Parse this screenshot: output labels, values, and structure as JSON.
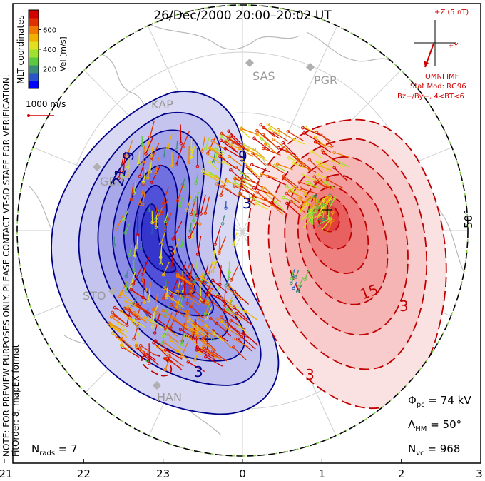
{
  "chart_data": {
    "type": "map",
    "title": "26/Dec/2000 20:00–20:02 UT",
    "coordinates_label": "MLT coordinates",
    "note": "NOTE: FOR PREVIEW PURPOSES ONLY. PLEASE CONTACT VT-SD STAFF FOR VERIFICATION.",
    "fit_order": "FitOrder: 8, mapEX format",
    "colorbar": {
      "label": "Vel [m/s]",
      "ticks": [
        200,
        400,
        600
      ],
      "range": [
        0,
        800
      ],
      "colors": [
        "#0000ff",
        "#2a55c8",
        "#3c8c78",
        "#5cc840",
        "#a0e030",
        "#e0e020",
        "#f0b000",
        "#f07800",
        "#e03000",
        "#d00000"
      ]
    },
    "vector_scale": {
      "label": "1000 m/s",
      "value": 1000
    },
    "imf": {
      "z_label": "+Z (5 nT)",
      "y_label": "+Y",
      "source": "OMNI IMF",
      "stat_model": "Stat Mod: RG96",
      "condition": "Bz−/By−, 4<BT<6"
    },
    "mlt_ticks": [
      "21",
      "22",
      "23",
      "0",
      "1",
      "2",
      "3"
    ],
    "latitude_label": "50°",
    "station_labels": [
      "KAP",
      "SAS",
      "PGR",
      "GBR",
      "STO",
      "HAN"
    ],
    "contour_labels": [
      "21",
      "9",
      "3",
      "9",
      "3",
      "3",
      "15",
      "3",
      "3"
    ],
    "stats": {
      "nrads_label": "N",
      "nrads_sub": "rads",
      "nrads": "7",
      "phi_label": "Φ",
      "phi_sub": "pc",
      "phi_value": "74 kV",
      "lambda_label": "Λ",
      "lambda_sub": "HM",
      "lambda_value": "50°",
      "nvc_label": "N",
      "nvc_sub": "vc",
      "nvc": "968"
    },
    "convection": {
      "dusk_cell": {
        "sign": "negative",
        "contours_kv": [
          -3,
          -9,
          -15,
          -21,
          -27,
          -33
        ]
      },
      "dawn_cell": {
        "sign": "positive",
        "contours_kv": [
          3,
          9,
          15,
          21,
          27,
          33,
          39
        ]
      }
    }
  }
}
